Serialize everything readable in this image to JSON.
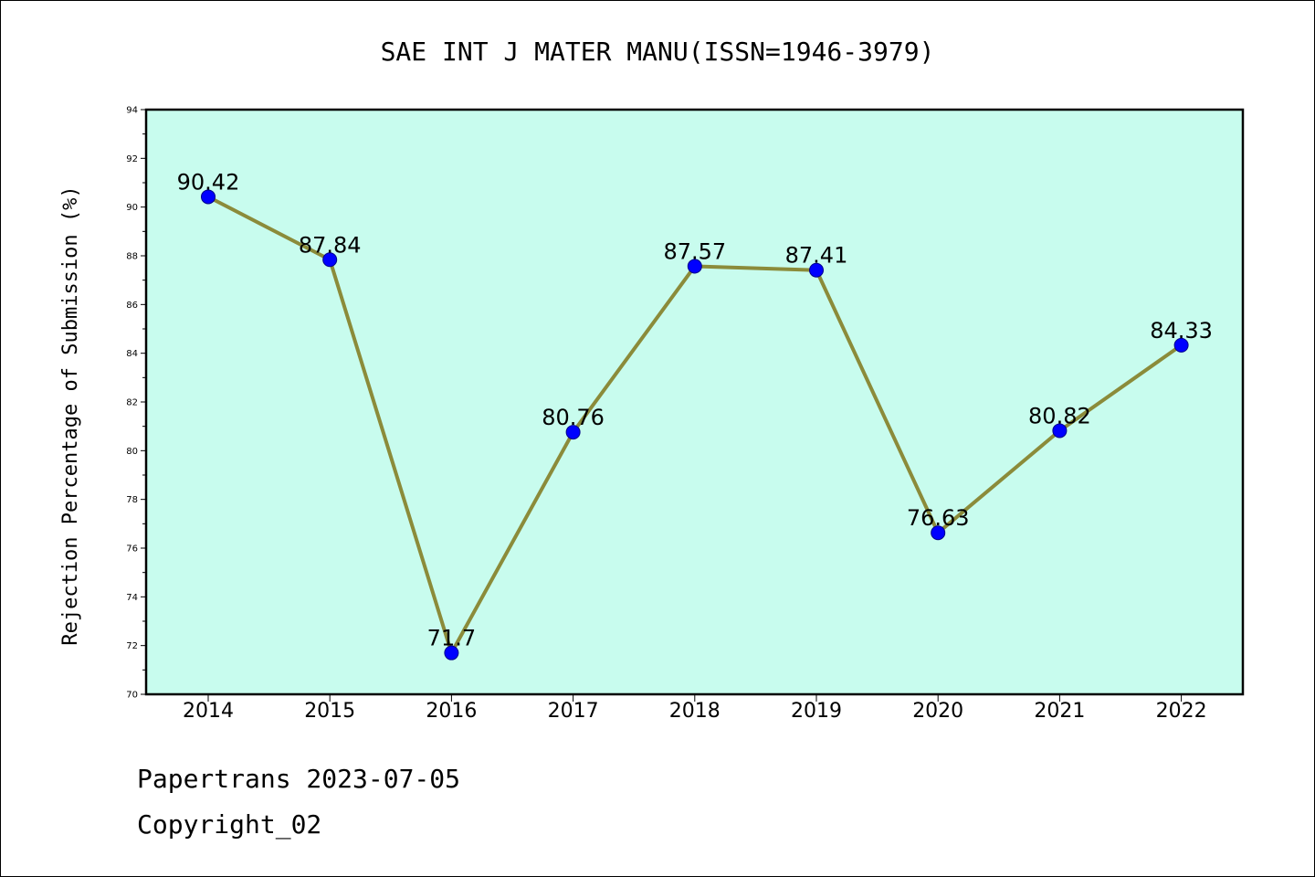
{
  "chart_data": {
    "type": "line",
    "title": "SAE INT J MATER MANU(ISSN=1946-3979)",
    "xlabel": "",
    "ylabel": "Rejection Percentage of Submission (%)",
    "categories": [
      "2014",
      "2015",
      "2016",
      "2017",
      "2018",
      "2019",
      "2020",
      "2021",
      "2022"
    ],
    "series": [
      {
        "values": [
          90.42,
          87.84,
          71.7,
          80.76,
          87.57,
          87.41,
          76.63,
          80.82,
          84.33
        ],
        "labels": [
          "90.42",
          "87.84",
          "71.7",
          "80.76",
          "87.57",
          "87.41",
          "76.63",
          "80.82",
          "84.33"
        ]
      }
    ],
    "ylim": [
      70,
      94
    ],
    "yticks": [
      "70",
      "72",
      "74",
      "76",
      "78",
      "80",
      "82",
      "84",
      "86",
      "88",
      "90",
      "92",
      "94"
    ],
    "grid": false,
    "legend": "none",
    "colors": {
      "plot_background": "#c8fcee",
      "line": "#8b8b3a",
      "marker": "#0000ff",
      "marker_edge": "#00008b"
    }
  },
  "footer": {
    "line1": "Papertrans 2023-07-05",
    "line2": "Copyright_02"
  }
}
